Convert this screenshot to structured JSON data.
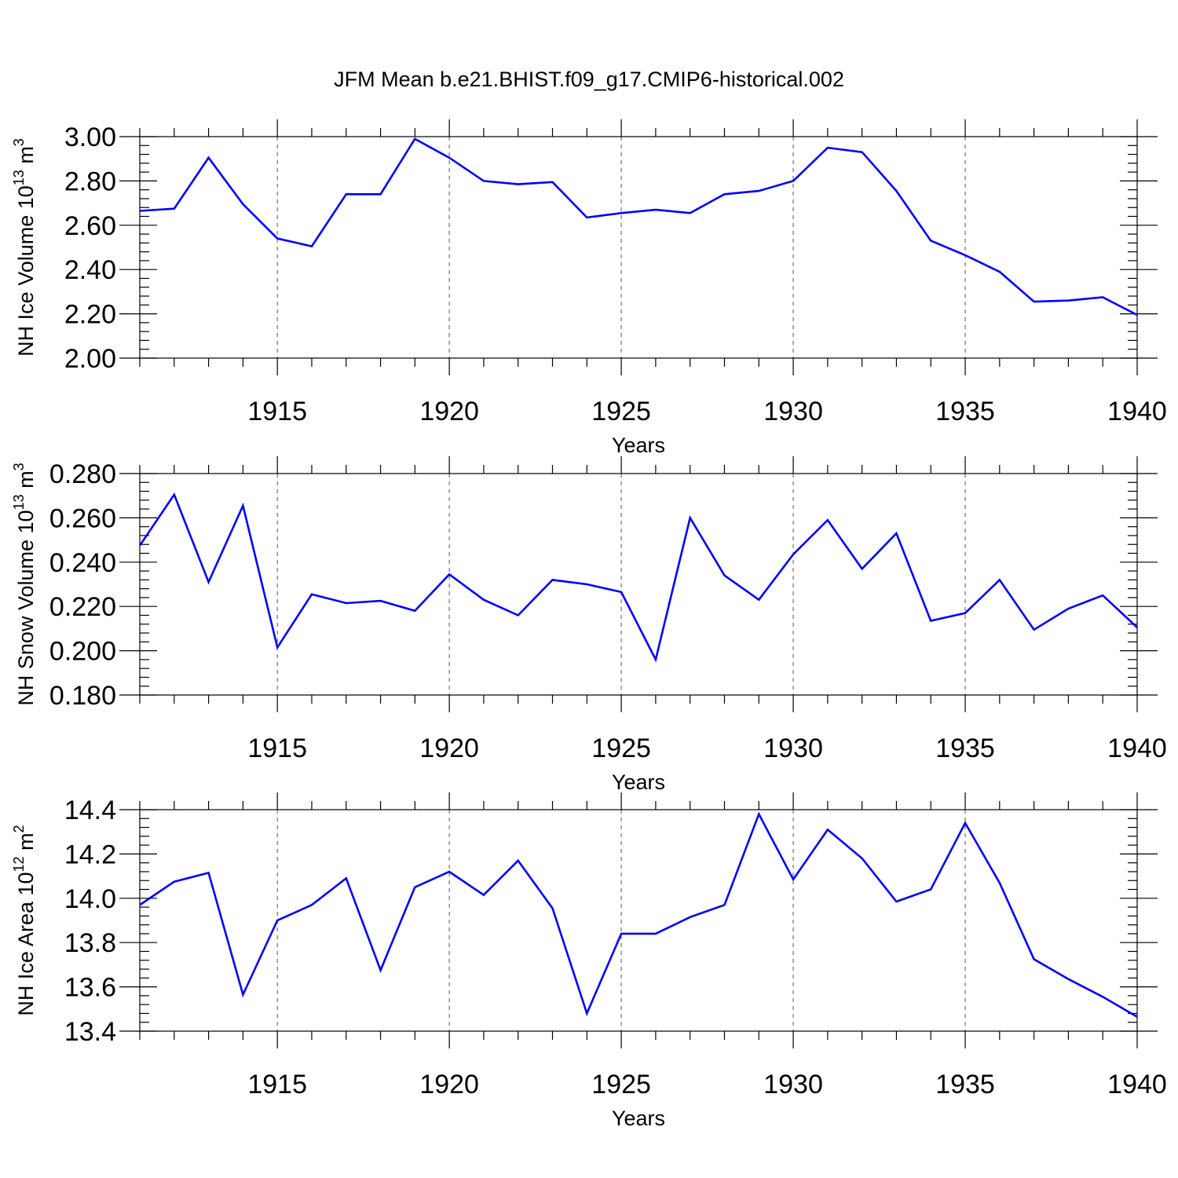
{
  "title": "JFM Mean b.e21.BHIST.f09_g17.CMIP6-historical.002",
  "chart_data": [
    {
      "type": "line",
      "ylabel": "NH Ice Volume 10",
      "ylabel_exp": "13",
      "ylabel_unit": " m",
      "ylabel_unit_exp": "3",
      "xlabel": "Years",
      "xlim": [
        1911,
        1940
      ],
      "ylim": [
        2.0,
        3.0
      ],
      "yticks": [
        2.0,
        2.2,
        2.4,
        2.6,
        2.8,
        3.0
      ],
      "ytick_labels": [
        "2.00",
        "2.20",
        "2.40",
        "2.60",
        "2.80",
        "3.00"
      ],
      "yminor": 0.04,
      "xticks": [
        1915,
        1920,
        1925,
        1930,
        1935,
        1940
      ],
      "xtick_labels": [
        "1915",
        "1920",
        "1925",
        "1930",
        "1935",
        "1940"
      ],
      "grid": "vertical dashed at major x ticks",
      "color": "#0000ff",
      "x": [
        1911,
        1912,
        1913,
        1914,
        1915,
        1916,
        1917,
        1918,
        1919,
        1920,
        1921,
        1922,
        1923,
        1924,
        1925,
        1926,
        1927,
        1928,
        1929,
        1930,
        1931,
        1932,
        1933,
        1934,
        1935,
        1936,
        1937,
        1938,
        1939,
        1940
      ],
      "y": [
        2.665,
        2.675,
        2.905,
        2.695,
        2.54,
        2.505,
        2.74,
        2.74,
        2.99,
        2.905,
        2.8,
        2.785,
        2.795,
        2.635,
        2.655,
        2.67,
        2.655,
        2.74,
        2.755,
        2.8,
        2.95,
        2.93,
        2.755,
        2.53,
        2.465,
        2.39,
        2.255,
        2.26,
        2.275,
        2.195
      ]
    },
    {
      "type": "line",
      "ylabel": "NH Snow Volume 10",
      "ylabel_exp": "13",
      "ylabel_unit": " m",
      "ylabel_unit_exp": "3",
      "xlabel": "Years",
      "xlim": [
        1911,
        1940
      ],
      "ylim": [
        0.18,
        0.28
      ],
      "yticks": [
        0.18,
        0.2,
        0.22,
        0.24,
        0.26,
        0.28
      ],
      "ytick_labels": [
        "0.180",
        "0.200",
        "0.220",
        "0.240",
        "0.260",
        "0.280"
      ],
      "yminor": 0.004,
      "xticks": [
        1915,
        1920,
        1925,
        1930,
        1935,
        1940
      ],
      "xtick_labels": [
        "1915",
        "1920",
        "1925",
        "1930",
        "1935",
        "1940"
      ],
      "grid": "vertical dashed at major x ticks",
      "color": "#0000ff",
      "x": [
        1911,
        1912,
        1913,
        1914,
        1915,
        1916,
        1917,
        1918,
        1919,
        1920,
        1921,
        1922,
        1923,
        1924,
        1925,
        1926,
        1927,
        1928,
        1929,
        1930,
        1931,
        1932,
        1933,
        1934,
        1935,
        1936,
        1937,
        1938,
        1939,
        1940
      ],
      "y": [
        0.2475,
        0.2705,
        0.231,
        0.2655,
        0.2015,
        0.2255,
        0.2215,
        0.2225,
        0.218,
        0.2345,
        0.223,
        0.216,
        0.232,
        0.23,
        0.2265,
        0.196,
        0.26,
        0.234,
        0.223,
        0.2435,
        0.259,
        0.237,
        0.253,
        0.2135,
        0.217,
        0.232,
        0.2095,
        0.219,
        0.225,
        0.2105
      ]
    },
    {
      "type": "line",
      "ylabel": "NH Ice Area 10",
      "ylabel_exp": "12",
      "ylabel_unit": " m",
      "ylabel_unit_exp": "2",
      "xlabel": "Years",
      "xlim": [
        1911,
        1940
      ],
      "ylim": [
        13.4,
        14.4
      ],
      "yticks": [
        13.4,
        13.6,
        13.8,
        14.0,
        14.2,
        14.4
      ],
      "ytick_labels": [
        "13.4",
        "13.6",
        "13.8",
        "14.0",
        "14.2",
        "14.4"
      ],
      "yminor": 0.04,
      "xticks": [
        1915,
        1920,
        1925,
        1930,
        1935,
        1940
      ],
      "xtick_labels": [
        "1915",
        "1920",
        "1925",
        "1930",
        "1935",
        "1940"
      ],
      "grid": "vertical dashed at major x ticks",
      "color": "#0000ff",
      "x": [
        1911,
        1912,
        1913,
        1914,
        1915,
        1916,
        1917,
        1918,
        1919,
        1920,
        1921,
        1922,
        1923,
        1924,
        1925,
        1926,
        1927,
        1928,
        1929,
        1930,
        1931,
        1932,
        1933,
        1934,
        1935,
        1936,
        1937,
        1938,
        1939,
        1940
      ],
      "y": [
        13.97,
        14.075,
        14.115,
        13.565,
        13.9,
        13.97,
        14.09,
        13.675,
        14.05,
        14.12,
        14.015,
        14.17,
        13.955,
        13.48,
        13.84,
        13.84,
        13.915,
        13.97,
        14.38,
        14.085,
        14.31,
        14.18,
        13.985,
        14.04,
        14.34,
        14.07,
        13.725,
        13.635,
        13.555,
        13.465
      ]
    }
  ]
}
